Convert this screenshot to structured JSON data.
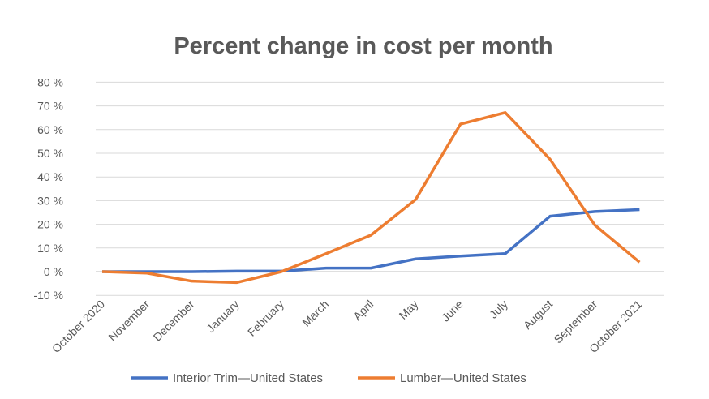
{
  "chart_data": {
    "type": "line",
    "title": "Percent change in cost per month",
    "xlabel": "",
    "ylabel": "",
    "categories": [
      "October 2020",
      "November",
      "December",
      "January",
      "February",
      "March",
      "April",
      "May",
      "June",
      "July",
      "August",
      "September",
      "October 2021"
    ],
    "series": [
      {
        "name": "Interior Trim—United States",
        "color": "#4472C4",
        "values": [
          0,
          0,
          0,
          0.2,
          0.2,
          1.5,
          1.5,
          5.4,
          6.6,
          7.6,
          23.4,
          25.4,
          26.2
        ]
      },
      {
        "name": "Lumber—United States",
        "color": "#ED7D31",
        "values": [
          0,
          -0.6,
          -4.0,
          -4.6,
          0,
          7.6,
          15.4,
          30.5,
          62.3,
          67.2,
          47.5,
          19.7,
          4.0
        ]
      }
    ],
    "ylim": [
      -10,
      80
    ],
    "yticks": [
      -10,
      0,
      10,
      20,
      30,
      40,
      50,
      60,
      70,
      80
    ],
    "ytick_labels": [
      "-10 %",
      "0 %",
      "10 %",
      "20 %",
      "30 %",
      "40 %",
      "50 %",
      "60 %",
      "70 %",
      "80 %"
    ],
    "grid": true,
    "legend_placement": "bottom"
  }
}
